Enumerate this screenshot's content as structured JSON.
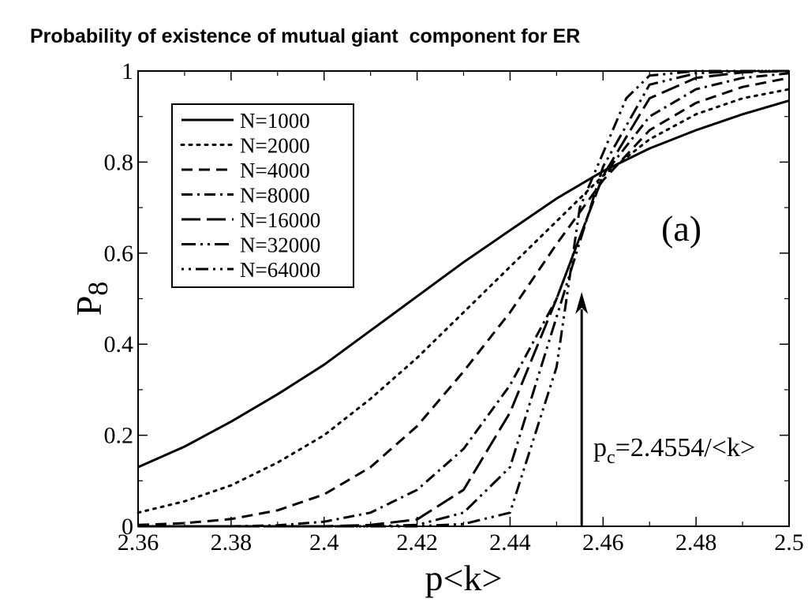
{
  "chart_data": {
    "type": "line",
    "title": "Probability of existence of mutual giant  component for ER",
    "xlabel": "p<k>",
    "ylabel": "P",
    "ylabel_sub": "8",
    "xlim": [
      2.36,
      2.5
    ],
    "ylim": [
      0,
      1
    ],
    "xticks": [
      "2.36",
      "2.38",
      "2.4",
      "2.42",
      "2.44",
      "2.46",
      "2.48",
      "2.5"
    ],
    "yticks": [
      "0",
      "0.2",
      "0.4",
      "0.6",
      "0.8",
      "1"
    ],
    "legend_position": "top-left",
    "panel_label": "(a)",
    "annotation": {
      "x": 2.4554,
      "text_main": "p",
      "text_sub": "c",
      "text_rest": "=2.4554/<k>"
    },
    "series": [
      {
        "name": "N=1000",
        "dash": "solid",
        "x": [
          2.36,
          2.37,
          2.38,
          2.39,
          2.4,
          2.41,
          2.42,
          2.43,
          2.44,
          2.45,
          2.46,
          2.47,
          2.48,
          2.49,
          2.5
        ],
        "y": [
          0.13,
          0.175,
          0.23,
          0.29,
          0.355,
          0.43,
          0.505,
          0.58,
          0.65,
          0.72,
          0.78,
          0.83,
          0.87,
          0.905,
          0.935
        ]
      },
      {
        "name": "N=2000",
        "dash": "dotted",
        "x": [
          2.36,
          2.37,
          2.38,
          2.39,
          2.4,
          2.41,
          2.42,
          2.43,
          2.44,
          2.45,
          2.46,
          2.47,
          2.48,
          2.49,
          2.5
        ],
        "y": [
          0.03,
          0.055,
          0.09,
          0.14,
          0.2,
          0.28,
          0.37,
          0.47,
          0.57,
          0.67,
          0.77,
          0.85,
          0.905,
          0.94,
          0.96
        ]
      },
      {
        "name": "N=4000",
        "dash": "dashed",
        "x": [
          2.36,
          2.37,
          2.38,
          2.39,
          2.4,
          2.41,
          2.42,
          2.43,
          2.44,
          2.45,
          2.46,
          2.47,
          2.48,
          2.49,
          2.5
        ],
        "y": [
          0.003,
          0.007,
          0.016,
          0.035,
          0.07,
          0.13,
          0.22,
          0.34,
          0.47,
          0.62,
          0.76,
          0.87,
          0.93,
          0.965,
          0.985
        ]
      },
      {
        "name": "N=8000",
        "dash": "dashdot",
        "x": [
          2.36,
          2.38,
          2.39,
          2.4,
          2.41,
          2.42,
          2.43,
          2.44,
          2.45,
          2.46,
          2.47,
          2.48,
          2.49,
          2.5
        ],
        "y": [
          0.0,
          0.0,
          0.002,
          0.01,
          0.03,
          0.08,
          0.17,
          0.31,
          0.5,
          0.77,
          0.9,
          0.96,
          0.985,
          0.995
        ]
      },
      {
        "name": "N=16000",
        "dash": "longdash",
        "x": [
          2.36,
          2.39,
          2.4,
          2.41,
          2.42,
          2.43,
          2.44,
          2.45,
          2.46,
          2.47,
          2.48,
          2.49,
          2.5
        ],
        "y": [
          0.0,
          0.0,
          0.0,
          0.003,
          0.015,
          0.08,
          0.25,
          0.5,
          0.77,
          0.94,
          0.985,
          0.997,
          1.0
        ]
      },
      {
        "name": "N=32000",
        "dash": "dashdotdot",
        "x": [
          2.36,
          2.41,
          2.42,
          2.43,
          2.44,
          2.45,
          2.46,
          2.47,
          2.48,
          2.49,
          2.5
        ],
        "y": [
          0.0,
          0.0,
          0.003,
          0.03,
          0.13,
          0.46,
          0.79,
          0.97,
          0.995,
          1.0,
          1.0
        ]
      },
      {
        "name": "N=64000",
        "dash": "dotdash",
        "x": [
          2.36,
          2.42,
          2.43,
          2.44,
          2.45,
          2.455,
          2.46,
          2.465,
          2.47,
          2.48,
          2.49,
          2.5
        ],
        "y": [
          0.0,
          0.0,
          0.005,
          0.03,
          0.35,
          0.7,
          0.82,
          0.94,
          0.99,
          1.0,
          1.0,
          1.0
        ]
      }
    ]
  }
}
